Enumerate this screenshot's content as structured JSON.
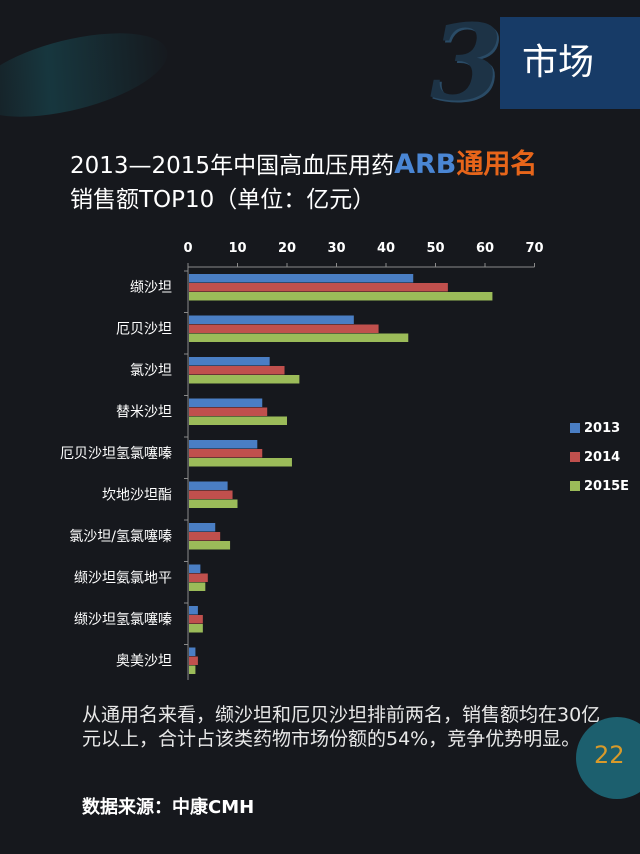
{
  "section": {
    "number": "3",
    "title": "市场"
  },
  "title": {
    "part1": "2013—2015年中国高血压用药",
    "part2": "ARB",
    "part3": "通用名",
    "line2": "销售额TOP10（单位：亿元）"
  },
  "body_text": "从通用名来看，缬沙坦和厄贝沙坦排前两名，销售额均在30亿元以上，合计占该类药物市场份额的54%，竞争优势明显。",
  "source": "数据来源：中康CMH",
  "page_number": "22",
  "chart_data": {
    "type": "bar",
    "orientation": "horizontal",
    "categories": [
      "缬沙坦",
      "厄贝沙坦",
      "氯沙坦",
      "替米沙坦",
      "厄贝沙坦氢氯噻嗪",
      "坎地沙坦酯",
      "氯沙坦/氢氯噻嗪",
      "缬沙坦氨氯地平",
      "缬沙坦氢氯噻嗪",
      "奥美沙坦"
    ],
    "series": [
      {
        "name": "2013",
        "color": "#4a7ec4",
        "values": [
          45.5,
          33.5,
          16.5,
          15,
          14,
          8,
          5.5,
          2.5,
          2,
          1.5
        ]
      },
      {
        "name": "2014",
        "color": "#c0504d",
        "values": [
          52.5,
          38.5,
          19.5,
          16,
          15,
          9,
          6.5,
          4,
          3,
          2
        ]
      },
      {
        "name": "2015E",
        "color": "#9bbb59",
        "values": [
          61.5,
          44.5,
          22.5,
          20,
          21,
          10,
          8.5,
          3.5,
          3,
          1.5
        ]
      }
    ],
    "x_ticks": [
      "0",
      "10",
      "20",
      "30",
      "40",
      "50",
      "60",
      "70"
    ],
    "xlim": [
      0,
      70
    ],
    "axis_position": "top",
    "legend_position": "right",
    "grid": false
  }
}
